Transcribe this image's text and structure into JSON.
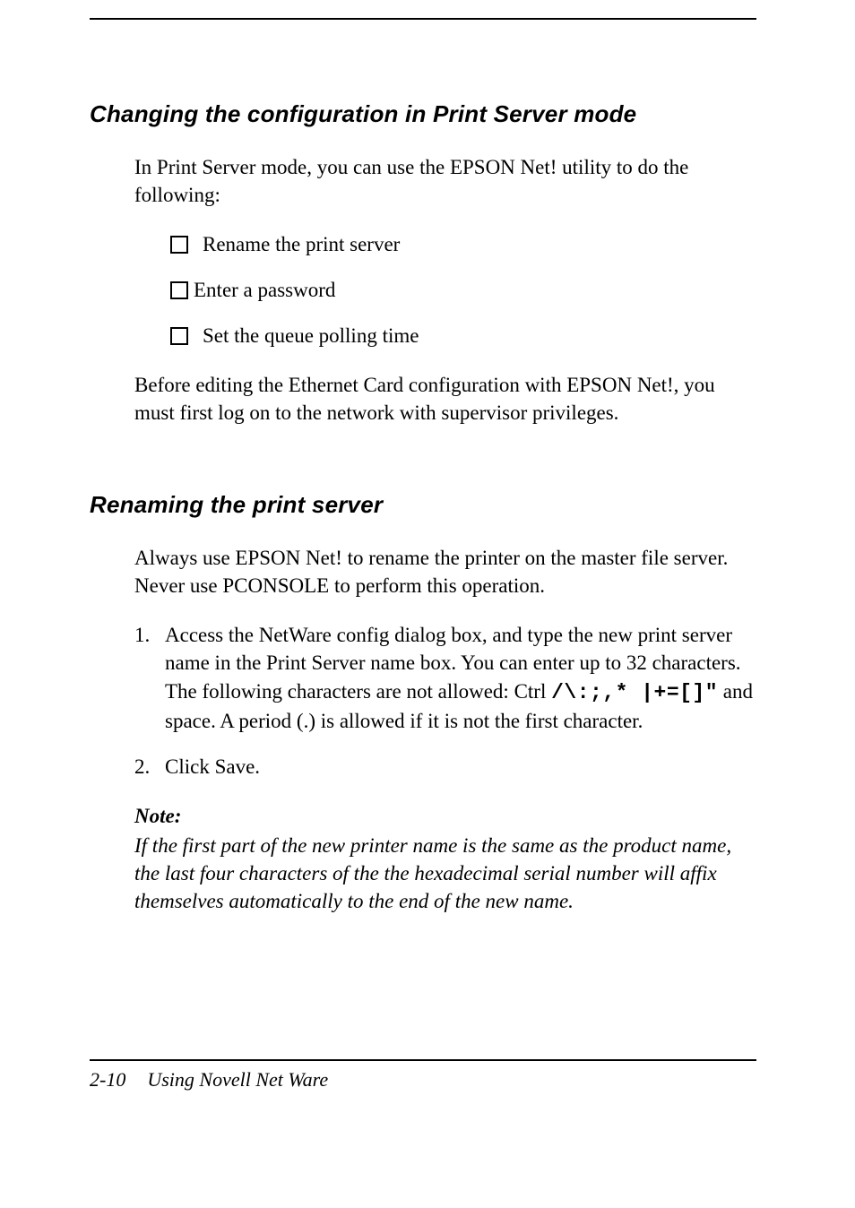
{
  "section1": {
    "heading": "Changing the configuration in Print Server mode",
    "intro": "In Print Server mode, you can use the EPSON Net! utility to do the following:",
    "bullets": [
      "Rename the print server",
      "Enter a password",
      "Set the queue polling time"
    ],
    "after": "Before editing the Ethernet Card configuration with EPSON Net!, you must first log on to the network with supervisor privileges."
  },
  "section2": {
    "heading": "Renaming the print server",
    "intro": "Always use EPSON Net! to rename the printer on the master file server. Never use PCONSOLE to perform this operation.",
    "steps": [
      {
        "num": "1.",
        "pre": "Access the NetWare config dialog box, and type the new print server name in the Print Server name box. You can enter up to 32 characters. The following characters are not allowed: Ctrl ",
        "mono": "/\\:;,* |+=[]\"",
        "post": " and space. A period (.) is allowed if it is not the first character."
      },
      {
        "num": "2.",
        "text": "Click Save."
      }
    ],
    "note_label": "Note:",
    "note_body": "If the first part of the new printer name is the same as the product name, the last four characters of the the hexadecimal serial number will affix themselves automatically to the end of the new name."
  },
  "footer": {
    "page": "2-10",
    "title": "Using Novell Net Ware"
  }
}
